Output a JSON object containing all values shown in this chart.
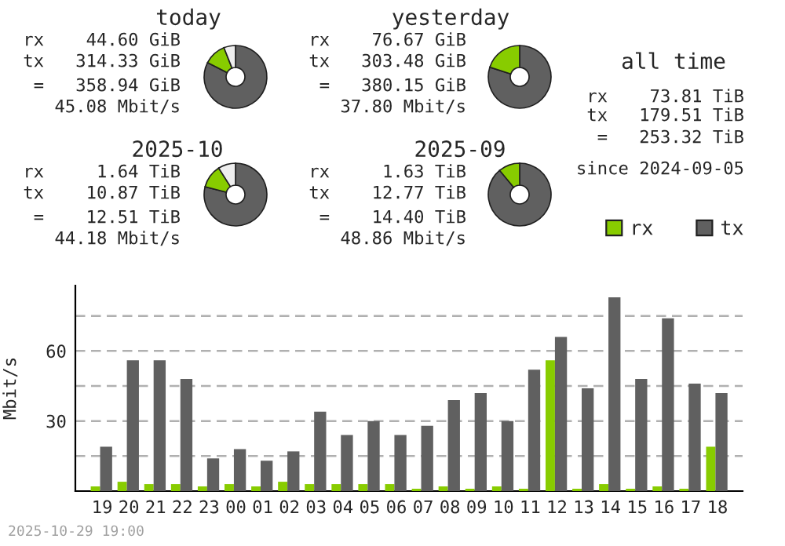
{
  "chart_data": [
    {
      "type": "donut",
      "title": "today",
      "categories": [
        null,
        null,
        null
      ],
      "values": [
        82.5,
        11.5,
        6
      ],
      "colors": [
        "#606060",
        "#88cc00",
        "#eeeeee"
      ],
      "annotations": [
        "rx    44.60 GiB",
        "tx   314.33 GiB",
        " =   358.94 GiB",
        "45.08 Mbit/s"
      ]
    },
    {
      "type": "donut",
      "title": "yesterday",
      "categories": [
        null,
        null
      ],
      "values": [
        80,
        20
      ],
      "colors": [
        "#606060",
        "#88cc00"
      ],
      "annotations": [
        "rx    76.67 GiB",
        "tx   303.48 GiB",
        " =   380.15 GiB",
        "37.80 Mbit/s"
      ]
    },
    {
      "type": "other",
      "title": "all time",
      "annotations": [
        "rx    73.81 TiB",
        "tx   179.51 TiB",
        " =   253.32 TiB",
        "since 2024-09-05"
      ]
    },
    {
      "type": "donut",
      "title": "2025-10",
      "categories": [
        null,
        null,
        null
      ],
      "values": [
        79,
        12,
        9
      ],
      "colors": [
        "#606060",
        "#88cc00",
        "#eeeeee"
      ],
      "annotations": [
        "rx     1.64 TiB",
        "tx    10.87 TiB",
        " =    12.51 TiB",
        "44.18 Mbit/s"
      ]
    },
    {
      "type": "donut",
      "title": "2025-09",
      "categories": [
        null,
        null
      ],
      "values": [
        89,
        11
      ],
      "colors": [
        "#606060",
        "#88cc00"
      ],
      "annotations": [
        "rx     1.63 TiB",
        "tx    12.77 TiB",
        " =    14.40 TiB",
        "48.86 Mbit/s"
      ]
    },
    {
      "type": "bar",
      "ylabel": "Mbit/s",
      "categories": [
        "19",
        "20",
        "21",
        "22",
        "23",
        "00",
        "01",
        "02",
        "03",
        "04",
        "05",
        "06",
        "07",
        "08",
        "09",
        "10",
        "11",
        "12",
        "13",
        "14",
        "15",
        "16",
        "17",
        "18"
      ],
      "series": [
        {
          "name": "rx",
          "color": "#88cc00",
          "values": [
            2,
            4,
            3,
            3,
            2,
            3,
            2,
            4,
            3,
            3,
            3,
            3,
            1,
            2,
            1,
            2,
            1,
            56,
            1,
            3,
            1,
            2,
            1,
            19
          ]
        },
        {
          "name": "tx",
          "color": "#606060",
          "values": [
            19,
            56,
            56,
            48,
            14,
            18,
            13,
            17,
            34,
            24,
            30,
            24,
            28,
            39,
            42,
            30,
            52,
            66,
            44,
            83,
            48,
            74,
            46,
            42
          ]
        }
      ],
      "ylim": [
        0,
        88
      ],
      "yticks": [
        {
          "value": 15,
          "label": null
        },
        30,
        {
          "value": 45,
          "label": null
        },
        60,
        {
          "value": 75,
          "label": null
        }
      ],
      "grid": "y",
      "legend": "top right",
      "annotations": [
        "2025-10-29 19:00"
      ]
    }
  ]
}
